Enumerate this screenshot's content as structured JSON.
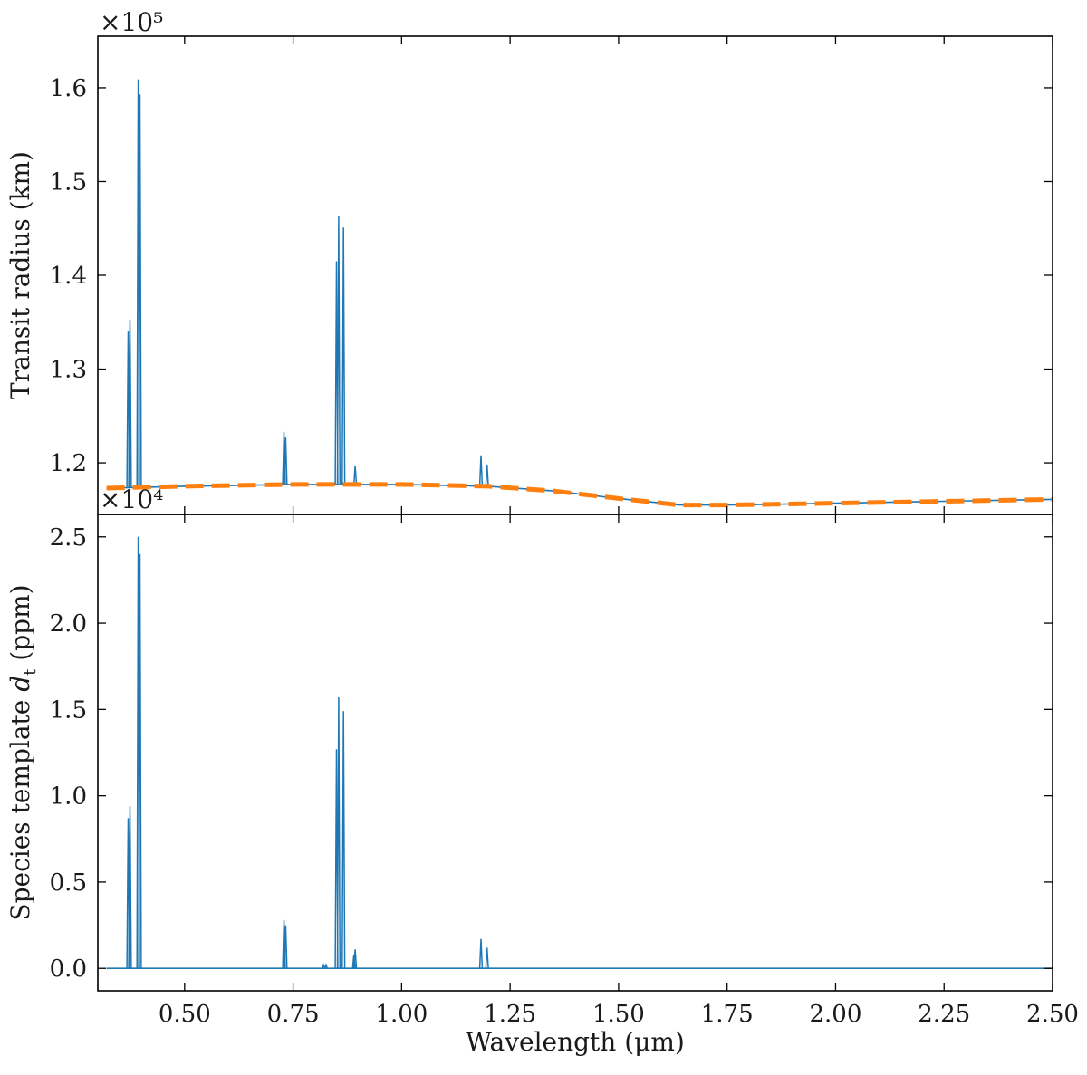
{
  "colors": {
    "spectrum": "#1f77b4",
    "continuum": "#ff7f0e",
    "axes": "#000000"
  },
  "chart_data": [
    {
      "type": "line",
      "panel": "top",
      "xlabel": "Wavelength (μm)",
      "ylabel": "Transit radius (km)",
      "offset_text": "×10⁵",
      "multiplier": 100000,
      "xlim": [
        0.3,
        2.5
      ],
      "ylim": [
        1.145,
        1.655
      ],
      "xticks": [
        0.5,
        0.75,
        1.0,
        1.25,
        1.5,
        1.75,
        2.0,
        2.25,
        2.5
      ],
      "xtick_labels": [
        "0.50",
        "0.75",
        "1.00",
        "1.25",
        "1.50",
        "1.75",
        "2.00",
        "2.25",
        "2.50"
      ],
      "yticks": [
        1.2,
        1.3,
        1.4,
        1.5,
        1.6
      ],
      "ytick_labels": [
        "1.2",
        "1.3",
        "1.4",
        "1.5",
        "1.6"
      ],
      "series": [
        {
          "style": "solid",
          "baseline": {
            "x": [
              0.32,
              0.5,
              0.75,
              1.0,
              1.2,
              1.35,
              1.5,
              1.64,
              1.75,
              2.0,
              2.25,
              2.5
            ],
            "y": [
              1.173,
              1.175,
              1.177,
              1.177,
              1.175,
              1.17,
              1.162,
              1.155,
              1.155,
              1.157,
              1.159,
              1.161
            ]
          },
          "lines": [
            {
              "x": 0.37,
              "y": 1.34
            },
            {
              "x": 0.374,
              "y": 1.353
            },
            {
              "x": 0.393,
              "y": 1.609
            },
            {
              "x": 0.397,
              "y": 1.593
            },
            {
              "x": 0.729,
              "y": 1.233
            },
            {
              "x": 0.733,
              "y": 1.227
            },
            {
              "x": 0.85,
              "y": 1.415
            },
            {
              "x": 0.855,
              "y": 1.463
            },
            {
              "x": 0.866,
              "y": 1.451
            },
            {
              "x": 0.893,
              "y": 1.197
            },
            {
              "x": 1.183,
              "y": 1.208
            },
            {
              "x": 1.197,
              "y": 1.198
            }
          ]
        },
        {
          "style": "dashed",
          "x": [
            0.32,
            0.5,
            0.75,
            1.0,
            1.2,
            1.35,
            1.5,
            1.64,
            1.75,
            2.0,
            2.25,
            2.5
          ],
          "y": [
            1.173,
            1.175,
            1.177,
            1.177,
            1.175,
            1.17,
            1.162,
            1.155,
            1.155,
            1.157,
            1.159,
            1.161
          ]
        }
      ]
    },
    {
      "type": "line",
      "panel": "bottom",
      "xlabel": "Wavelength (μm)",
      "ylabel_main": "Species template ",
      "ylabel_var": "d",
      "ylabel_sub": "t",
      "ylabel_tail": " (ppm)",
      "offset_text": "×10⁴",
      "multiplier": 10000,
      "xlim": [
        0.3,
        2.5
      ],
      "ylim": [
        -0.13,
        2.63
      ],
      "xticks": [
        0.5,
        0.75,
        1.0,
        1.25,
        1.5,
        1.75,
        2.0,
        2.25,
        2.5
      ],
      "xtick_labels": [
        "0.50",
        "0.75",
        "1.00",
        "1.25",
        "1.50",
        "1.75",
        "2.00",
        "2.25",
        "2.50"
      ],
      "yticks": [
        0.0,
        0.5,
        1.0,
        1.5,
        2.0,
        2.5
      ],
      "ytick_labels": [
        "0.0",
        "0.5",
        "1.0",
        "1.5",
        "2.0",
        "2.5"
      ],
      "series": [
        {
          "style": "solid",
          "baseline": {
            "x": [
              0.32,
              2.5
            ],
            "y": [
              0.0,
              0.0
            ]
          },
          "lines": [
            {
              "x": 0.37,
              "y": 0.87
            },
            {
              "x": 0.374,
              "y": 0.94
            },
            {
              "x": 0.393,
              "y": 2.5
            },
            {
              "x": 0.397,
              "y": 2.4
            },
            {
              "x": 0.729,
              "y": 0.28
            },
            {
              "x": 0.733,
              "y": 0.25
            },
            {
              "x": 0.82,
              "y": 0.02
            },
            {
              "x": 0.826,
              "y": 0.02
            },
            {
              "x": 0.85,
              "y": 1.27
            },
            {
              "x": 0.855,
              "y": 1.57
            },
            {
              "x": 0.866,
              "y": 1.49
            },
            {
              "x": 0.89,
              "y": 0.08
            },
            {
              "x": 0.893,
              "y": 0.11
            },
            {
              "x": 1.183,
              "y": 0.17
            },
            {
              "x": 1.197,
              "y": 0.12
            }
          ]
        }
      ]
    }
  ]
}
